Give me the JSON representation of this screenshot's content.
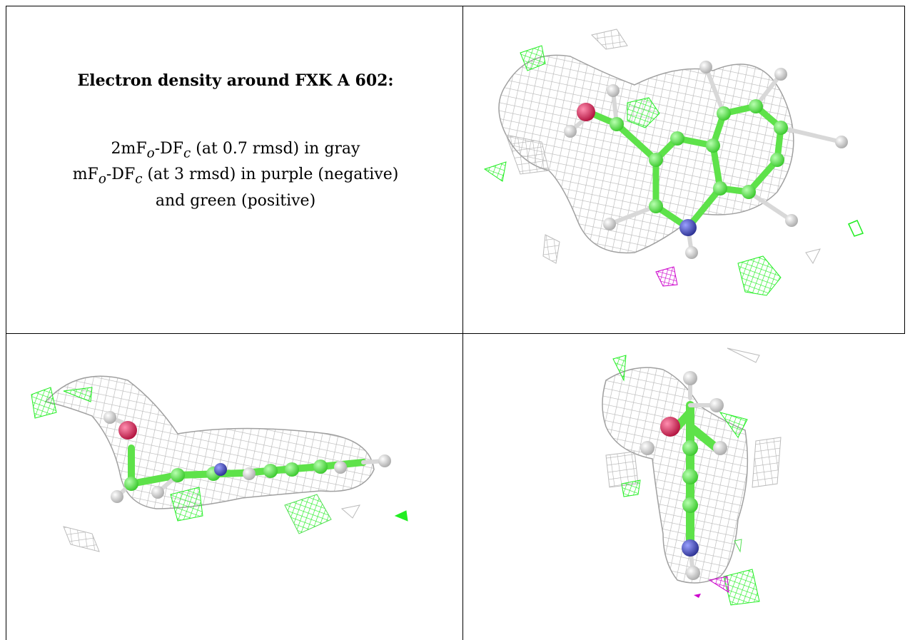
{
  "caption": {
    "title": "Electron density around FXK A 602:",
    "line1": {
      "prefix": "2mF",
      "sub_o": "o",
      "mid": "-DF",
      "sub_c": "c",
      "suffix": " (at 0.7 rmsd) in gray"
    },
    "line2": {
      "prefix": "mF",
      "sub_o": "o",
      "mid": "-DF",
      "sub_c": "c",
      "suffix": " (at 3 rmsd) in purple (negative)"
    },
    "line3": "and green (positive)"
  },
  "colors": {
    "mesh_gray": "#b8b8b8",
    "positive_green": "#22ee22",
    "negative_purple": "#cc00cc",
    "carbon_green": "#66ee55",
    "hydrogen_white": "#e6e6e6",
    "nitrogen_blue": "#4a4fb8",
    "oxygen_red": "#e0245a"
  }
}
